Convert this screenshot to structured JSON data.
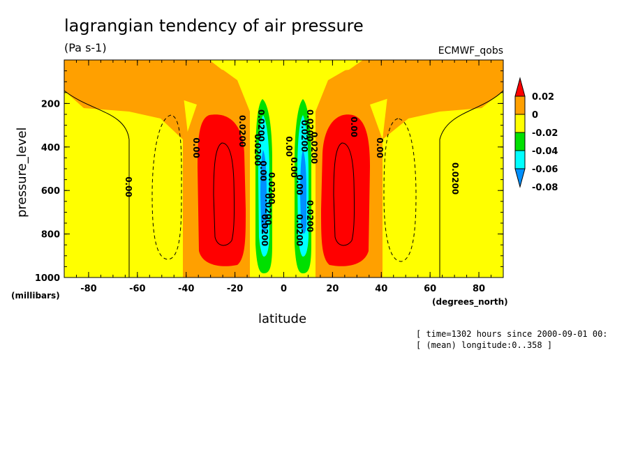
{
  "chart_data": {
    "type": "heatmap",
    "title": "lagrangian tendency of air pressure",
    "units": "(Pa s-1)",
    "dataset": "ECMWF_qobs",
    "xlabel": "latitude",
    "x_units": "(degrees_north)",
    "ylabel": "pressure_level",
    "y_units": "(millibars)",
    "xlim": [
      -90,
      90
    ],
    "ylim": [
      1000,
      0
    ],
    "x_ticks": [
      -80,
      -60,
      -40,
      -20,
      0,
      20,
      40,
      60,
      80
    ],
    "y_ticks": [
      200,
      400,
      600,
      800,
      1000
    ],
    "grid": false,
    "legend_position": "right",
    "colorbar": {
      "labels": [
        "0.02",
        "0",
        "-0.02",
        "-0.04",
        "-0.06",
        "-0.08"
      ],
      "colors": [
        "#ff0000",
        "#ffa000",
        "#ffff00",
        "#00e000",
        "#00ffff",
        "#0090ff"
      ]
    },
    "contour_labels": [
      "0.00",
      "0.00",
      "0.0200",
      "0.0200",
      "0.00",
      "0.00",
      "0.00",
      "0.00",
      "0.0200",
      "0.0200",
      "0.00",
      "0.00",
      "0.0200",
      "0.0200",
      "0.0200",
      "0.0200",
      "0.0200",
      "0.0200",
      "0.0200",
      "0.0200"
    ],
    "cells": [
      {
        "lat": [
          -90,
          -80
        ],
        "p": [
          0,
          1000
        ],
        "band": "0"
      },
      {
        "lat": [
          -80,
          -60
        ],
        "p": [
          0,
          1000
        ],
        "band": "-0.02"
      },
      {
        "lat": [
          -60,
          -40
        ],
        "p": [
          0,
          1000
        ],
        "band": "-0.02"
      },
      {
        "lat": [
          -40,
          -20
        ],
        "p": [
          250,
          900
        ],
        "band": "0.02"
      },
      {
        "lat": [
          -12,
          -6
        ],
        "p": [
          200,
          950
        ],
        "band": "-0.06"
      },
      {
        "lat": [
          6,
          12
        ],
        "p": [
          200,
          950
        ],
        "band": "-0.06"
      },
      {
        "lat": [
          20,
          40
        ],
        "p": [
          250,
          900
        ],
        "band": "0.02"
      },
      {
        "lat": [
          40,
          60
        ],
        "p": [
          0,
          1000
        ],
        "band": "-0.02"
      },
      {
        "lat": [
          60,
          80
        ],
        "p": [
          0,
          1000
        ],
        "band": "-0.02"
      },
      {
        "lat": [
          80,
          90
        ],
        "p": [
          0,
          1000
        ],
        "band": "0"
      }
    ],
    "annotations": [
      "[ time=1302 hours since 2000-09-01 00:",
      "[ (mean) longitude:0..358 ]"
    ]
  }
}
